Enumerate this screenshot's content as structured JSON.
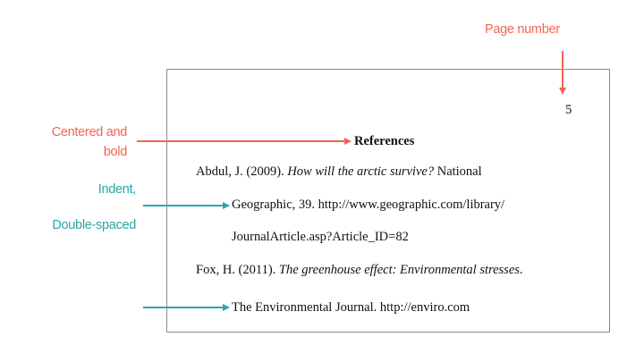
{
  "annotations": {
    "page_number": "Page number",
    "centered_line1": "Centered and",
    "centered_line2": "bold",
    "indent_line1": "Indent,",
    "indent_line2": "Double-spaced"
  },
  "document": {
    "page_number": "5",
    "heading": "References",
    "entries": [
      {
        "author": "Abdul, J. (2009). ",
        "title": "How will the arctic survive?",
        "rest": " National",
        "cont1": "Geographic, 39. http://www.geographic.com/library/",
        "cont2": "JournalArticle.asp?Article_ID=82"
      },
      {
        "author": "Fox, H. (2011). ",
        "title": "The greenhouse effect: Environmental stresses",
        "rest": ".",
        "cont1": "The Environmental Journal. http://enviro.com"
      }
    ]
  },
  "colors": {
    "annotation_red": "#f26552",
    "annotation_teal": "#2aa7a6"
  }
}
